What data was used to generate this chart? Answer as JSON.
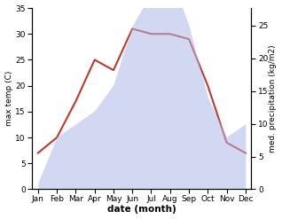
{
  "months": [
    "Jan",
    "Feb",
    "Mar",
    "Apr",
    "May",
    "Jun",
    "Jul",
    "Aug",
    "Sep",
    "Oct",
    "Nov",
    "Dec"
  ],
  "temperature": [
    7,
    10,
    17,
    25,
    23,
    31,
    30,
    30,
    29,
    20,
    9,
    7
  ],
  "precipitation": [
    1,
    8,
    10,
    12,
    16,
    25,
    30,
    33,
    25,
    14,
    8,
    10
  ],
  "temp_color": "#c0392b",
  "precip_color": "#b0b8e8",
  "temp_ylim": [
    0,
    35
  ],
  "precip_ylim": [
    0,
    27.7
  ],
  "temp_yticks": [
    0,
    5,
    10,
    15,
    20,
    25,
    30,
    35
  ],
  "precip_yticks": [
    0,
    5,
    10,
    15,
    20,
    25
  ],
  "ylabel_left": "max temp (C)",
  "ylabel_right": "med. precipitation (kg/m2)",
  "xlabel": "date (month)",
  "background_color": "#ffffff",
  "temp_linewidth": 1.5,
  "precip_alpha": 0.55
}
